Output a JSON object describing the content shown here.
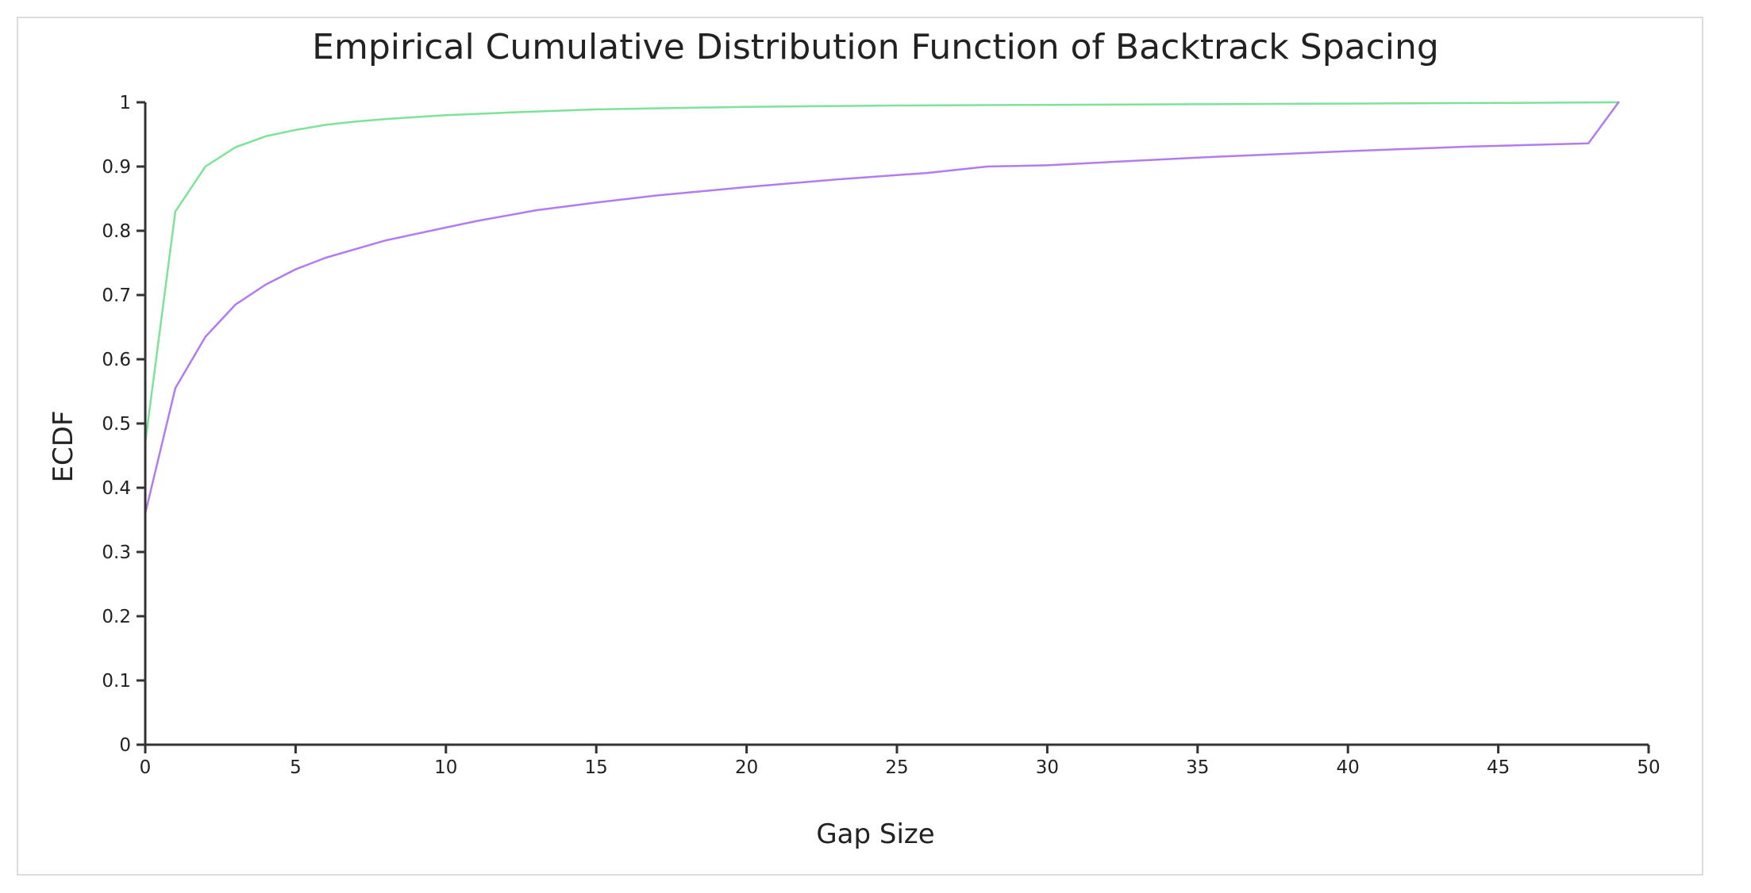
{
  "chart_data": {
    "type": "line",
    "title": "Empirical Cumulative Distribution Function of Backtrack Spacing",
    "xlabel": "Gap Size",
    "ylabel": "ECDF",
    "xlim": [
      0,
      50
    ],
    "ylim": [
      0,
      1
    ],
    "xticks": [
      "0",
      "5",
      "10",
      "15",
      "20",
      "25",
      "30",
      "35",
      "40",
      "45",
      "50"
    ],
    "yticks": [
      "0",
      "0.1",
      "0.2",
      "0.3",
      "0.4",
      "0.5",
      "0.6",
      "0.7",
      "0.8",
      "0.9",
      "1"
    ],
    "grid": false,
    "legend": "none",
    "series": [
      {
        "color": "#7ee29a",
        "x": [
          0,
          1,
          2,
          3,
          4,
          5,
          6,
          7,
          8,
          9,
          10,
          12,
          15,
          20,
          25,
          30,
          35,
          40,
          45,
          49
        ],
        "y": [
          0.47,
          0.83,
          0.9,
          0.93,
          0.947,
          0.957,
          0.965,
          0.97,
          0.974,
          0.977,
          0.98,
          0.984,
          0.989,
          0.993,
          0.995,
          0.996,
          0.997,
          0.998,
          0.999,
          1.0
        ]
      },
      {
        "color": "#b27cf0",
        "x": [
          0,
          1,
          2,
          3,
          4,
          5,
          6,
          8,
          10,
          11,
          13,
          15,
          17,
          20,
          23,
          26,
          28,
          30,
          35,
          40,
          44,
          48,
          49
        ],
        "y": [
          0.36,
          0.555,
          0.635,
          0.685,
          0.716,
          0.74,
          0.758,
          0.785,
          0.805,
          0.815,
          0.832,
          0.844,
          0.855,
          0.868,
          0.88,
          0.89,
          0.9,
          0.902,
          0.914,
          0.924,
          0.931,
          0.936,
          1.0
        ]
      }
    ]
  }
}
